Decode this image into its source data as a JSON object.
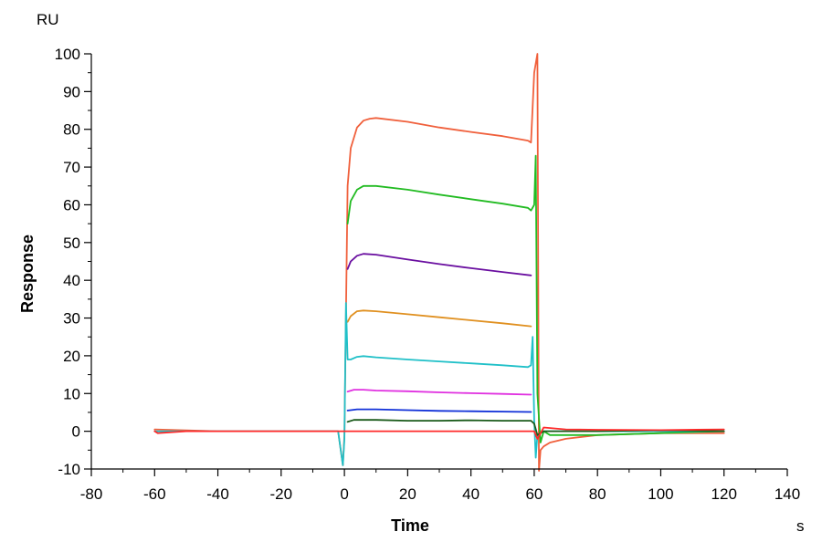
{
  "chart_data": {
    "type": "line",
    "title": "",
    "xlabel": "Time",
    "ylabel": "Response",
    "x_unit": "s",
    "y_unit": "RU",
    "xlim": [
      -80,
      140
    ],
    "ylim": [
      -10,
      100
    ],
    "x_ticks": [
      -80,
      -60,
      -40,
      -20,
      0,
      20,
      40,
      60,
      80,
      100,
      120,
      140
    ],
    "y_ticks": [
      -10,
      0,
      10,
      20,
      30,
      40,
      50,
      60,
      70,
      80,
      90,
      100
    ],
    "grid": false,
    "legend": "none",
    "series": [
      {
        "color": "#f0603c",
        "points": [
          [
            -60,
            0.5
          ],
          [
            -40,
            0
          ],
          [
            -20,
            0
          ],
          [
            -2,
            0
          ],
          [
            -0.5,
            -9
          ],
          [
            0,
            -1
          ],
          [
            1,
            65
          ],
          [
            2,
            75
          ],
          [
            4,
            80.5
          ],
          [
            6,
            82.3
          ],
          [
            8,
            82.8
          ],
          [
            10,
            83
          ],
          [
            20,
            82
          ],
          [
            30,
            80.5
          ],
          [
            40,
            79.3
          ],
          [
            50,
            78.2
          ],
          [
            58,
            77
          ],
          [
            59,
            76.5
          ],
          [
            60,
            95
          ],
          [
            61,
            100
          ],
          [
            61.5,
            -12
          ],
          [
            62,
            -5
          ],
          [
            63,
            -4
          ],
          [
            65,
            -3
          ],
          [
            70,
            -2
          ],
          [
            80,
            -1
          ],
          [
            100,
            -0.5
          ],
          [
            120,
            -0.5
          ]
        ]
      },
      {
        "color": "#22bb22",
        "points": [
          [
            1,
            55
          ],
          [
            2,
            61
          ],
          [
            4,
            64
          ],
          [
            6,
            65
          ],
          [
            10,
            65
          ],
          [
            20,
            64
          ],
          [
            30,
            62.7
          ],
          [
            40,
            61.5
          ],
          [
            50,
            60.3
          ],
          [
            58,
            59.2
          ],
          [
            59,
            58.5
          ],
          [
            60,
            60
          ],
          [
            60.5,
            73
          ],
          [
            61,
            10
          ],
          [
            62,
            -3
          ],
          [
            63,
            0
          ],
          [
            65,
            -1
          ],
          [
            80,
            -1
          ],
          [
            100,
            -0.5
          ],
          [
            120,
            0
          ]
        ]
      },
      {
        "color": "#6a0fa0",
        "points": [
          [
            1,
            43
          ],
          [
            2,
            45
          ],
          [
            4,
            46.5
          ],
          [
            6,
            47
          ],
          [
            10,
            46.8
          ],
          [
            20,
            45.5
          ],
          [
            30,
            44.3
          ],
          [
            40,
            43.2
          ],
          [
            50,
            42.2
          ],
          [
            59,
            41.3
          ]
        ]
      },
      {
        "color": "#e09020",
        "points": [
          [
            1,
            29
          ],
          [
            2,
            30.5
          ],
          [
            4,
            31.8
          ],
          [
            6,
            32
          ],
          [
            10,
            31.8
          ],
          [
            20,
            31
          ],
          [
            30,
            30.2
          ],
          [
            40,
            29.4
          ],
          [
            50,
            28.6
          ],
          [
            59,
            27.8
          ]
        ]
      },
      {
        "color": "#20c0c8",
        "points": [
          [
            -60,
            0
          ],
          [
            -20,
            0
          ],
          [
            -2,
            0
          ],
          [
            -0.5,
            -9
          ],
          [
            0,
            -2
          ],
          [
            0.5,
            34
          ],
          [
            1,
            19
          ],
          [
            2,
            19
          ],
          [
            4,
            19.7
          ],
          [
            6,
            19.9
          ],
          [
            10,
            19.6
          ],
          [
            20,
            19
          ],
          [
            30,
            18.5
          ],
          [
            40,
            18
          ],
          [
            50,
            17.5
          ],
          [
            58,
            17
          ],
          [
            59,
            17.5
          ],
          [
            59.5,
            25
          ],
          [
            60,
            3
          ],
          [
            60.5,
            -7
          ],
          [
            61,
            -1
          ],
          [
            63,
            0
          ],
          [
            80,
            0
          ],
          [
            100,
            0
          ],
          [
            120,
            0
          ]
        ]
      },
      {
        "color": "#e030e0",
        "points": [
          [
            1,
            10.5
          ],
          [
            3,
            11
          ],
          [
            6,
            11
          ],
          [
            10,
            10.8
          ],
          [
            20,
            10.6
          ],
          [
            30,
            10.3
          ],
          [
            40,
            10.1
          ],
          [
            50,
            9.9
          ],
          [
            59,
            9.7
          ]
        ]
      },
      {
        "color": "#1030d8",
        "points": [
          [
            1,
            5.5
          ],
          [
            4,
            5.8
          ],
          [
            10,
            5.8
          ],
          [
            20,
            5.6
          ],
          [
            30,
            5.4
          ],
          [
            40,
            5.3
          ],
          [
            50,
            5.2
          ],
          [
            59,
            5.1
          ]
        ]
      },
      {
        "color": "#1a5a1a",
        "points": [
          [
            1,
            2.5
          ],
          [
            3,
            3
          ],
          [
            10,
            3
          ],
          [
            20,
            2.8
          ],
          [
            30,
            2.8
          ],
          [
            40,
            2.9
          ],
          [
            50,
            2.8
          ],
          [
            59,
            2.8
          ],
          [
            60,
            2
          ],
          [
            61,
            -1
          ],
          [
            63,
            0
          ],
          [
            80,
            0
          ],
          [
            100,
            0.3
          ],
          [
            120,
            0
          ]
        ]
      },
      {
        "color": "#ff2a2a",
        "points": [
          [
            -60,
            0
          ],
          [
            -59,
            -0.5
          ],
          [
            -50,
            0
          ],
          [
            -20,
            0
          ],
          [
            -2,
            0
          ],
          [
            0,
            0
          ],
          [
            60,
            0
          ],
          [
            61,
            -2
          ],
          [
            63,
            1
          ],
          [
            70,
            0.5
          ],
          [
            80,
            0.4
          ],
          [
            100,
            0.3
          ],
          [
            120,
            0.5
          ]
        ]
      }
    ]
  }
}
